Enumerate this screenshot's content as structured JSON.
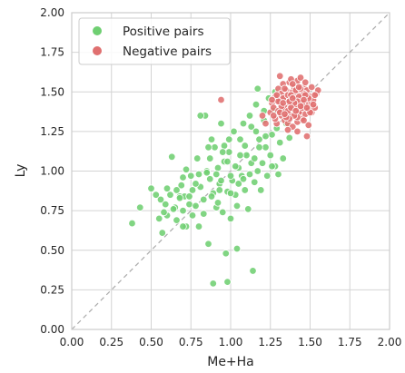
{
  "chart_data": {
    "type": "scatter",
    "xlabel": "Me+Ha",
    "ylabel": "Ly",
    "xlim": [
      0,
      2
    ],
    "ylim": [
      0,
      2
    ],
    "xticks": [
      "0.00",
      "0.25",
      "0.50",
      "0.75",
      "1.00",
      "1.25",
      "1.50",
      "1.75",
      "2.00"
    ],
    "yticks": [
      "0.00",
      "0.25",
      "0.50",
      "0.75",
      "1.00",
      "1.25",
      "1.50",
      "1.75",
      "2.00"
    ],
    "grid": true,
    "legend_position": "top-left",
    "diagonal": "y = x, dashed grey",
    "series": [
      {
        "name": "Positive pairs",
        "color": "#6fcf72",
        "points": [
          [
            0.38,
            0.67
          ],
          [
            0.43,
            0.77
          ],
          [
            0.5,
            0.89
          ],
          [
            0.53,
            0.85
          ],
          [
            0.55,
            0.7
          ],
          [
            0.56,
            0.82
          ],
          [
            0.57,
            0.61
          ],
          [
            0.59,
            0.79
          ],
          [
            0.6,
            0.72
          ],
          [
            0.62,
            0.85
          ],
          [
            0.63,
            1.09
          ],
          [
            0.65,
            0.77
          ],
          [
            0.66,
            0.69
          ],
          [
            0.68,
            0.84
          ],
          [
            0.69,
            0.91
          ],
          [
            0.7,
            0.75
          ],
          [
            0.71,
            0.84
          ],
          [
            0.72,
            0.65
          ],
          [
            0.74,
            0.79
          ],
          [
            0.75,
            0.97
          ],
          [
            0.76,
            0.88
          ],
          [
            0.78,
            0.78
          ],
          [
            0.79,
            1.08
          ],
          [
            0.8,
            0.65
          ],
          [
            0.81,
            0.9
          ],
          [
            0.83,
            0.82
          ],
          [
            0.84,
            1.35
          ],
          [
            0.85,
            1.0
          ],
          [
            0.86,
            0.54
          ],
          [
            0.87,
            0.95
          ],
          [
            0.88,
            1.2
          ],
          [
            0.89,
            0.86
          ],
          [
            0.9,
            1.15
          ],
          [
            0.91,
            0.77
          ],
          [
            0.92,
            1.02
          ],
          [
            0.93,
            0.92
          ],
          [
            0.94,
            1.3
          ],
          [
            0.95,
            0.74
          ],
          [
            0.96,
            1.06
          ],
          [
            0.97,
            0.48
          ],
          [
            0.98,
            0.87
          ],
          [
            0.99,
            1.12
          ],
          [
            1.0,
            0.7
          ],
          [
            1.01,
            0.94
          ],
          [
            1.02,
            1.25
          ],
          [
            1.03,
            0.85
          ],
          [
            1.04,
            0.51
          ],
          [
            1.05,
            1.02
          ],
          [
            1.06,
            1.2
          ],
          [
            1.07,
            0.97
          ],
          [
            1.08,
            1.3
          ],
          [
            1.09,
            0.88
          ],
          [
            1.1,
            1.1
          ],
          [
            1.11,
            0.76
          ],
          [
            1.12,
            1.35
          ],
          [
            1.13,
            1.05
          ],
          [
            1.14,
            0.37
          ],
          [
            1.15,
            0.93
          ],
          [
            1.16,
            1.42
          ],
          [
            1.17,
            1.0
          ],
          [
            1.18,
            1.2
          ],
          [
            1.19,
            0.88
          ],
          [
            1.2,
            1.05
          ],
          [
            1.21,
            1.32
          ],
          [
            1.22,
            1.15
          ],
          [
            1.23,
            0.97
          ],
          [
            1.24,
            1.46
          ],
          [
            1.25,
            1.1
          ],
          [
            1.26,
            1.23
          ],
          [
            1.27,
            1.38
          ],
          [
            1.28,
            1.03
          ],
          [
            1.29,
            1.27
          ],
          [
            1.3,
            0.98
          ],
          [
            1.31,
            1.18
          ],
          [
            1.32,
            1.43
          ],
          [
            1.33,
            1.08
          ],
          [
            1.35,
            1.3
          ],
          [
            1.37,
            1.21
          ],
          [
            1.39,
            1.39
          ],
          [
            0.89,
            0.29
          ],
          [
            0.98,
            0.3
          ],
          [
            0.81,
            1.35
          ],
          [
            0.85,
            0.99
          ],
          [
            1.0,
            0.97
          ],
          [
            0.93,
            0.88
          ],
          [
            1.06,
            1.1
          ],
          [
            0.96,
            1.16
          ],
          [
            0.74,
            0.84
          ],
          [
            0.68,
            0.83
          ],
          [
            0.72,
            1.01
          ],
          [
            0.87,
            1.08
          ],
          [
            0.94,
            0.94
          ],
          [
            1.03,
            1.03
          ],
          [
            1.12,
            0.98
          ],
          [
            0.78,
            0.92
          ],
          [
            0.66,
            0.88
          ],
          [
            0.91,
            0.98
          ],
          [
            1.18,
            1.15
          ],
          [
            1.04,
            0.78
          ],
          [
            0.83,
            0.73
          ],
          [
            0.6,
            0.89
          ],
          [
            0.98,
            1.06
          ],
          [
            1.09,
            1.16
          ],
          [
            1.26,
            1.03
          ],
          [
            1.15,
            1.08
          ],
          [
            0.88,
            0.84
          ],
          [
            0.76,
            0.72
          ],
          [
            0.7,
            0.65
          ],
          [
            0.95,
            1.12
          ],
          [
            1.05,
            0.92
          ],
          [
            1.22,
            1.22
          ],
          [
            1.13,
            1.28
          ],
          [
            0.99,
            1.2
          ],
          [
            0.86,
            1.15
          ],
          [
            1.28,
            1.5
          ],
          [
            1.21,
            1.38
          ],
          [
            1.16,
            1.25
          ],
          [
            1.33,
            1.37
          ],
          [
            1.3,
            1.45
          ],
          [
            0.8,
            0.98
          ],
          [
            0.92,
            0.8
          ],
          [
            1.0,
            0.86
          ],
          [
            1.08,
            0.95
          ],
          [
            0.7,
            0.96
          ],
          [
            0.64,
            0.76
          ],
          [
            0.58,
            0.74
          ],
          [
            1.17,
            1.52
          ]
        ]
      },
      {
        "name": "Negative pairs",
        "color": "#e07070",
        "points": [
          [
            0.94,
            1.45
          ],
          [
            1.2,
            1.35
          ],
          [
            1.22,
            1.3
          ],
          [
            1.25,
            1.37
          ],
          [
            1.26,
            1.43
          ],
          [
            1.27,
            1.4
          ],
          [
            1.28,
            1.47
          ],
          [
            1.29,
            1.3
          ],
          [
            1.3,
            1.38
          ],
          [
            1.3,
            1.52
          ],
          [
            1.31,
            1.44
          ],
          [
            1.32,
            1.35
          ],
          [
            1.32,
            1.49
          ],
          [
            1.33,
            1.41
          ],
          [
            1.33,
            1.55
          ],
          [
            1.34,
            1.32
          ],
          [
            1.34,
            1.46
          ],
          [
            1.35,
            1.38
          ],
          [
            1.35,
            1.51
          ],
          [
            1.36,
            1.42
          ],
          [
            1.36,
            1.3
          ],
          [
            1.37,
            1.47
          ],
          [
            1.37,
            1.56
          ],
          [
            1.38,
            1.35
          ],
          [
            1.38,
            1.44
          ],
          [
            1.39,
            1.5
          ],
          [
            1.39,
            1.28
          ],
          [
            1.4,
            1.4
          ],
          [
            1.4,
            1.53
          ],
          [
            1.41,
            1.36
          ],
          [
            1.41,
            1.46
          ],
          [
            1.42,
            1.57
          ],
          [
            1.42,
            1.31
          ],
          [
            1.43,
            1.43
          ],
          [
            1.43,
            1.5
          ],
          [
            1.44,
            1.38
          ],
          [
            1.44,
            1.59
          ],
          [
            1.45,
            1.47
          ],
          [
            1.45,
            1.33
          ],
          [
            1.46,
            1.53
          ],
          [
            1.46,
            1.41
          ],
          [
            1.47,
            1.56
          ],
          [
            1.47,
            1.36
          ],
          [
            1.48,
            1.45
          ],
          [
            1.48,
            1.51
          ],
          [
            1.49,
            1.39
          ],
          [
            1.49,
            1.29
          ],
          [
            1.5,
            1.47
          ],
          [
            1.5,
            1.43
          ],
          [
            1.51,
            1.53
          ],
          [
            1.51,
            1.37
          ],
          [
            1.52,
            1.45
          ],
          [
            1.53,
            1.4
          ],
          [
            1.54,
            1.49
          ],
          [
            1.55,
            1.51
          ],
          [
            1.48,
            1.22
          ],
          [
            1.36,
            1.26
          ],
          [
            1.31,
            1.6
          ],
          [
            1.42,
            1.25
          ],
          [
            1.38,
            1.58
          ],
          [
            1.28,
            1.33
          ],
          [
            1.34,
            1.4
          ],
          [
            1.4,
            1.47
          ],
          [
            1.44,
            1.44
          ],
          [
            1.46,
            1.49
          ],
          [
            1.39,
            1.42
          ],
          [
            1.35,
            1.45
          ],
          [
            1.43,
            1.37
          ],
          [
            1.37,
            1.39
          ],
          [
            1.41,
            1.51
          ],
          [
            1.33,
            1.46
          ],
          [
            1.47,
            1.42
          ],
          [
            1.45,
            1.4
          ],
          [
            1.36,
            1.48
          ],
          [
            1.42,
            1.34
          ],
          [
            1.32,
            1.41
          ],
          [
            1.49,
            1.46
          ],
          [
            1.4,
            1.35
          ],
          [
            1.38,
            1.48
          ],
          [
            1.44,
            1.52
          ],
          [
            1.3,
            1.44
          ],
          [
            1.27,
            1.35
          ],
          [
            1.5,
            1.37
          ],
          [
            1.46,
            1.32
          ],
          [
            1.34,
            1.52
          ],
          [
            1.41,
            1.42
          ],
          [
            1.37,
            1.33
          ],
          [
            1.43,
            1.47
          ],
          [
            1.39,
            1.55
          ],
          [
            1.45,
            1.43
          ],
          [
            1.31,
            1.37
          ],
          [
            1.35,
            1.34
          ],
          [
            1.48,
            1.4
          ],
          [
            1.42,
            1.44
          ],
          [
            1.36,
            1.38
          ],
          [
            1.4,
            1.43
          ],
          [
            1.38,
            1.4
          ],
          [
            1.44,
            1.41
          ],
          [
            1.33,
            1.43
          ],
          [
            1.47,
            1.48
          ],
          [
            1.29,
            1.48
          ],
          [
            1.52,
            1.42
          ],
          [
            1.26,
            1.45
          ],
          [
            1.53,
            1.48
          ],
          [
            1.43,
            1.53
          ],
          [
            1.34,
            1.36
          ],
          [
            1.46,
            1.45
          ],
          [
            1.37,
            1.44
          ],
          [
            1.41,
            1.38
          ],
          [
            1.39,
            1.46
          ]
        ]
      }
    ]
  }
}
